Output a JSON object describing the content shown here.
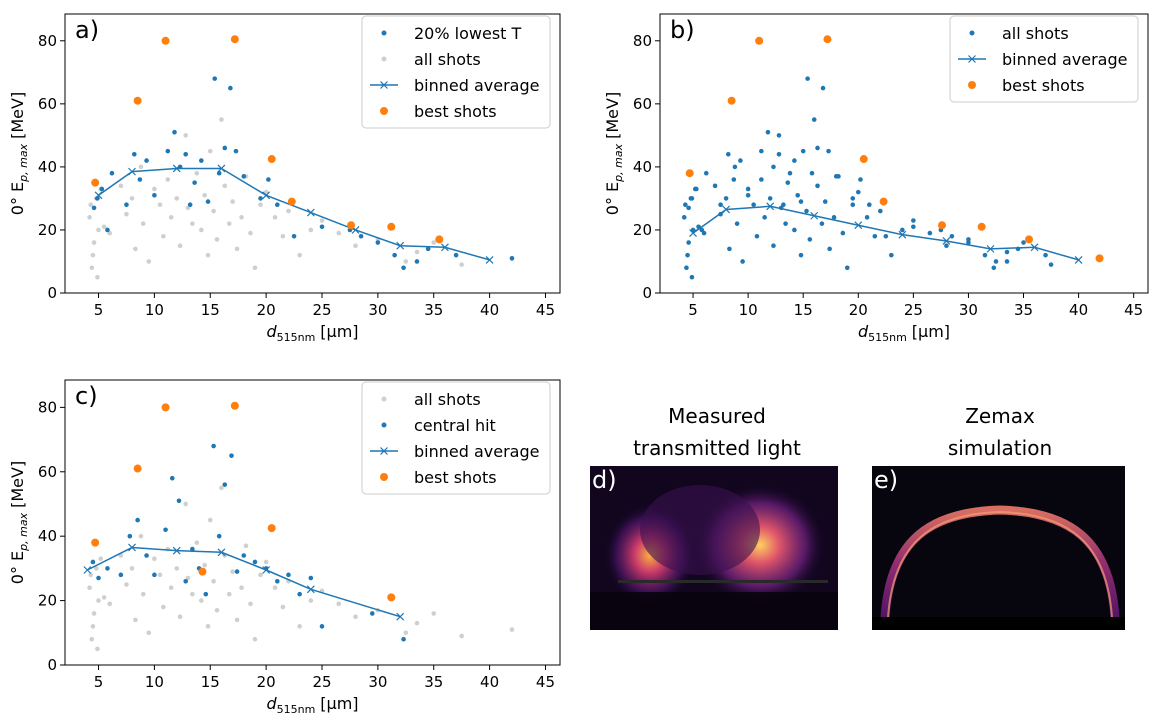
{
  "chart_data": [
    {
      "type": "scatter",
      "label": "a)",
      "xlabel": [
        "d",
        "515nm",
        "[μm]"
      ],
      "ylabel": [
        "0° E",
        "p, max",
        "[MeV]"
      ],
      "xlim": [
        2,
        46.3
      ],
      "ylim": [
        0,
        88.5
      ],
      "xticks": [
        5,
        10,
        15,
        20,
        25,
        30,
        35,
        40,
        45
      ],
      "yticks": [
        0,
        20,
        40,
        60,
        80
      ],
      "legend": "upper right",
      "series": [
        {
          "name": "20% lowest T",
          "color": "#1f77b4",
          "marker": ".",
          "x": [
            4.6,
            4.9,
            5.3,
            5.8,
            6.2,
            7.5,
            8.2,
            8.7,
            9.3,
            10.0,
            11.2,
            11.8,
            12.3,
            12.8,
            13.2,
            13.6,
            14.2,
            14.8,
            15.4,
            15.8,
            16.3,
            16.8,
            17.3,
            18.0,
            19.5,
            20.2,
            21.0,
            22.5,
            25.0,
            27.5,
            28.5,
            30.0,
            31.5,
            32.3,
            33.5,
            34.5,
            37.0,
            42.0
          ],
          "values": [
            27,
            30,
            33,
            20,
            38,
            28,
            44,
            36,
            42,
            31,
            45,
            51,
            40,
            44,
            28,
            35,
            42,
            29,
            68,
            38,
            46,
            65,
            45,
            37,
            30,
            36,
            28,
            18,
            21,
            20,
            18,
            16,
            12,
            8,
            10,
            14,
            12,
            11
          ]
        },
        {
          "name": "all shots",
          "color": "#cfcfcf",
          "marker": ".",
          "x": [
            4.2,
            4.5,
            4.8,
            5.0,
            4.4,
            4.6,
            5.2,
            4.9,
            4.3,
            5.5,
            6.0,
            7.0,
            7.5,
            8.0,
            8.3,
            8.8,
            9.0,
            9.5,
            10.0,
            10.5,
            10.8,
            11.2,
            11.5,
            12.0,
            12.3,
            12.8,
            13.0,
            13.4,
            13.8,
            14.2,
            14.5,
            14.8,
            15.0,
            15.3,
            15.6,
            16.0,
            16.3,
            16.7,
            17.0,
            17.4,
            17.8,
            18.2,
            18.6,
            19.0,
            19.5,
            20.0,
            20.8,
            21.5,
            22.0,
            23.0,
            24.0,
            25.0,
            26.5,
            28.0,
            30.0,
            32.5,
            33.5,
            35.0,
            37.5,
            42.0
          ],
          "values": [
            24,
            12,
            30,
            20,
            8,
            16,
            33,
            5,
            28,
            21,
            19,
            34,
            25,
            30,
            14,
            40,
            22,
            10,
            33,
            28,
            18,
            36,
            24,
            30,
            15,
            50,
            27,
            22,
            38,
            20,
            31,
            12,
            45,
            26,
            17,
            55,
            34,
            22,
            29,
            14,
            24,
            37,
            19,
            8,
            28,
            32,
            24,
            18,
            26,
            12,
            20,
            23,
            19,
            15,
            17,
            10,
            13,
            16,
            9,
            11
          ]
        },
        {
          "name": "binned average",
          "color": "#1f77b4",
          "marker": "x-",
          "x": [
            5,
            8,
            12,
            16,
            20,
            24,
            28,
            32,
            36,
            40
          ],
          "values": [
            31,
            38.5,
            39.5,
            39.5,
            31,
            25.5,
            20,
            15,
            14.5,
            10.5
          ]
        },
        {
          "name": "best shots",
          "color": "#ff7f0e",
          "marker": "o",
          "x": [
            4.7,
            8.5,
            11,
            17.2,
            20.5,
            22.3,
            27.6,
            31.2,
            35.5
          ],
          "values": [
            35,
            61,
            80,
            80.5,
            42.5,
            29,
            21.5,
            21,
            17
          ]
        }
      ]
    },
    {
      "type": "scatter",
      "label": "b)",
      "xlabel": [
        "d",
        "515nm",
        "[μm]"
      ],
      "ylabel": [
        "0° E",
        "p, max",
        "[MeV]"
      ],
      "xlim": [
        2,
        46.3
      ],
      "ylim": [
        0,
        88.5
      ],
      "xticks": [
        5,
        10,
        15,
        20,
        25,
        30,
        35,
        40,
        45
      ],
      "yticks": [
        0,
        20,
        40,
        60,
        80
      ],
      "legend": "upper right",
      "series": [
        {
          "name": "all shots",
          "color": "#1f77b4",
          "marker": ".",
          "x": [
            4.2,
            4.5,
            4.8,
            5.0,
            4.4,
            4.6,
            5.2,
            4.9,
            4.3,
            5.5,
            6.0,
            7.0,
            7.5,
            8.0,
            8.3,
            8.8,
            9.0,
            9.5,
            10.0,
            10.5,
            10.8,
            11.2,
            11.5,
            12.0,
            12.3,
            12.8,
            13.0,
            13.4,
            13.8,
            14.2,
            14.5,
            14.8,
            15.0,
            15.3,
            15.6,
            16.0,
            16.3,
            16.7,
            17.0,
            17.4,
            17.8,
            18.2,
            18.6,
            19.0,
            19.5,
            20.0,
            20.8,
            21.5,
            22.0,
            23.0,
            24.0,
            25.0,
            26.5,
            28.0,
            30.0,
            32.5,
            33.5,
            35.0,
            37.5,
            42.0,
            4.6,
            4.9,
            5.3,
            5.8,
            6.2,
            7.5,
            8.2,
            8.7,
            9.3,
            10.0,
            11.2,
            11.8,
            12.3,
            12.8,
            13.2,
            13.6,
            14.2,
            14.8,
            15.4,
            15.8,
            16.3,
            16.8,
            17.3,
            18.0,
            19.5,
            20.2,
            21.0,
            22.5,
            25.0,
            27.5,
            28.5,
            30.0,
            31.5,
            32.3,
            33.5,
            34.5,
            37.0
          ],
          "values": [
            24,
            12,
            30,
            20,
            8,
            16,
            33,
            5,
            28,
            21,
            19,
            34,
            25,
            30,
            14,
            40,
            22,
            10,
            33,
            28,
            18,
            36,
            24,
            30,
            15,
            50,
            27,
            22,
            38,
            20,
            31,
            12,
            45,
            26,
            17,
            55,
            34,
            22,
            29,
            14,
            24,
            37,
            19,
            8,
            28,
            32,
            24,
            18,
            26,
            12,
            20,
            23,
            19,
            15,
            17,
            10,
            13,
            16,
            9,
            11,
            27,
            30,
            33,
            20,
            38,
            28,
            44,
            36,
            42,
            31,
            45,
            51,
            40,
            44,
            28,
            35,
            42,
            29,
            68,
            38,
            46,
            65,
            45,
            37,
            30,
            36,
            28,
            18,
            21,
            20,
            18,
            16,
            12,
            8,
            10,
            14,
            12
          ]
        },
        {
          "name": "binned average",
          "color": "#1f77b4",
          "marker": "x-",
          "x": [
            5,
            8,
            12,
            16,
            20,
            24,
            28,
            32,
            36,
            40
          ],
          "values": [
            19,
            26.5,
            27.5,
            24.5,
            21.5,
            18.5,
            16.5,
            14,
            14.5,
            10.5
          ]
        },
        {
          "name": "best shots",
          "color": "#ff7f0e",
          "marker": "o",
          "x": [
            4.7,
            8.5,
            11,
            17.2,
            20.5,
            22.3,
            27.6,
            31.2,
            35.5,
            41.9
          ],
          "values": [
            38,
            61,
            80,
            80.5,
            42.5,
            29,
            21.5,
            21,
            17,
            11
          ]
        }
      ]
    },
    {
      "type": "scatter",
      "label": "c)",
      "xlabel": [
        "d",
        "515nm",
        "[μm]"
      ],
      "ylabel": [
        "0° E",
        "p, max",
        "[MeV]"
      ],
      "xlim": [
        2,
        46.3
      ],
      "ylim": [
        0,
        88.5
      ],
      "xticks": [
        5,
        10,
        15,
        20,
        25,
        30,
        35,
        40,
        45
      ],
      "yticks": [
        0,
        20,
        40,
        60,
        80
      ],
      "legend": "upper right",
      "series": [
        {
          "name": "all shots",
          "color": "#cfcfcf",
          "marker": ".",
          "x": [
            4.2,
            4.5,
            4.8,
            5.0,
            4.4,
            4.6,
            5.2,
            4.9,
            4.3,
            5.5,
            6.0,
            7.0,
            7.5,
            8.0,
            8.3,
            8.8,
            9.0,
            9.5,
            10.0,
            10.5,
            10.8,
            11.2,
            11.5,
            12.0,
            12.3,
            12.8,
            13.0,
            13.4,
            13.8,
            14.2,
            14.5,
            14.8,
            15.0,
            15.3,
            15.6,
            16.0,
            16.3,
            16.7,
            17.0,
            17.4,
            17.8,
            18.2,
            18.6,
            19.0,
            19.5,
            20.0,
            20.8,
            21.5,
            22.0,
            23.0,
            24.0,
            25.0,
            26.5,
            28.0,
            30.0,
            32.5,
            33.5,
            35.0,
            37.5,
            42.0
          ],
          "values": [
            24,
            12,
            30,
            20,
            8,
            16,
            33,
            5,
            28,
            21,
            19,
            34,
            25,
            30,
            14,
            40,
            22,
            10,
            33,
            28,
            18,
            36,
            24,
            30,
            15,
            50,
            27,
            22,
            38,
            20,
            31,
            12,
            45,
            26,
            17,
            55,
            34,
            22,
            29,
            14,
            24,
            37,
            19,
            8,
            28,
            32,
            24,
            18,
            26,
            12,
            20,
            23,
            19,
            15,
            17,
            10,
            13,
            16,
            9,
            11
          ]
        },
        {
          "name": "central hit",
          "color": "#1f77b4",
          "marker": ".",
          "x": [
            4.5,
            5.0,
            5.8,
            7.0,
            7.8,
            8.5,
            9.3,
            10.0,
            11.0,
            11.6,
            12.2,
            12.8,
            13.4,
            14.0,
            14.6,
            15.3,
            15.8,
            16.3,
            16.9,
            17.4,
            18.0,
            19.0,
            20.0,
            21.0,
            22.0,
            23.0,
            24.0,
            25.0,
            29.5,
            32.3
          ],
          "values": [
            32,
            27,
            30,
            28,
            40,
            45,
            34,
            28,
            42,
            58,
            51,
            26,
            36,
            30,
            22,
            68,
            40,
            56,
            65,
            29,
            34,
            32,
            30,
            26,
            28,
            22,
            27,
            12,
            16,
            8
          ]
        },
        {
          "name": "binned average",
          "color": "#1f77b4",
          "marker": "x-",
          "x": [
            4,
            8,
            12,
            16,
            20,
            24,
            32
          ],
          "values": [
            29.5,
            36.5,
            35.5,
            35,
            29.5,
            23.5,
            15
          ]
        },
        {
          "name": "best shots",
          "color": "#ff7f0e",
          "marker": "o",
          "x": [
            4.7,
            8.5,
            11,
            14.3,
            17.2,
            20.5,
            31.2
          ],
          "values": [
            38,
            61,
            80,
            29,
            80.5,
            42.5,
            21
          ]
        }
      ]
    }
  ],
  "images": [
    {
      "label": "d)",
      "title": [
        "Measured",
        "transmitted light"
      ]
    },
    {
      "label": "e)",
      "title": [
        "Zemax",
        "simulation"
      ]
    }
  ]
}
